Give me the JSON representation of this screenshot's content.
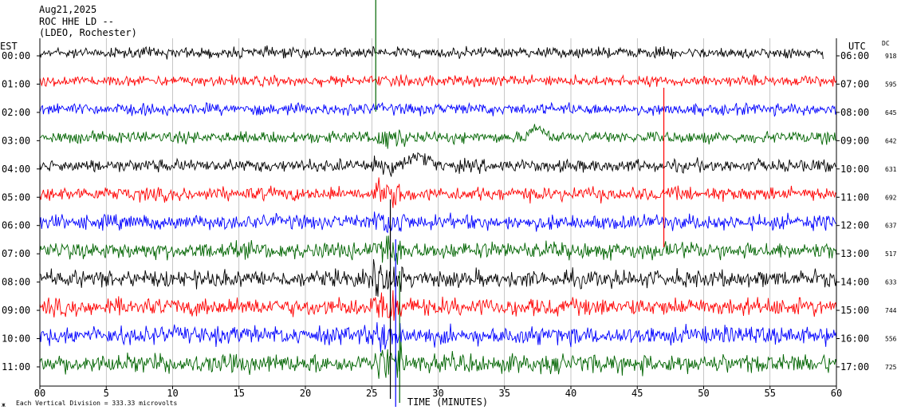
{
  "header": {
    "date": "Aug21,2025",
    "station": "ROC HHE LD --",
    "network": "(LDEO, Rochester)"
  },
  "chart_data": {
    "type": "line",
    "xlabel": "TIME (MINUTES)",
    "xlim": [
      0,
      60
    ],
    "x_ticks": [
      0,
      5,
      10,
      15,
      20,
      25,
      30,
      35,
      40,
      45,
      50,
      55,
      60
    ],
    "x_tick_labels": [
      "00",
      "5",
      "10",
      "15",
      "20",
      "25",
      "30",
      "35",
      "40",
      "45",
      "50",
      "55",
      "60"
    ],
    "left_axis_label": "EST",
    "right_axis_label": "UTC",
    "dc_label": "DC",
    "scale_note": "Each Vertical Division = 333.33 microvolts",
    "corner_mark": "ж",
    "grid": "vertical",
    "colors": [
      "#000000",
      "#ff0000",
      "#0000ff",
      "#006400"
    ],
    "rows": [
      {
        "est": "00:00",
        "utc": "06:00",
        "dc": "918",
        "color": "#000000",
        "amplitude": 1.0
      },
      {
        "est": "01:00",
        "utc": "07:00",
        "dc": "595",
        "color": "#ff0000",
        "amplitude": 1.0
      },
      {
        "est": "02:00",
        "utc": "08:00",
        "dc": "645",
        "color": "#0000ff",
        "amplitude": 1.1
      },
      {
        "est": "03:00",
        "utc": "09:00",
        "dc": "642",
        "color": "#006400",
        "amplitude": 1.1
      },
      {
        "est": "04:00",
        "utc": "10:00",
        "dc": "631",
        "color": "#000000",
        "amplitude": 1.2
      },
      {
        "est": "05:00",
        "utc": "11:00",
        "dc": "692",
        "color": "#ff0000",
        "amplitude": 1.3
      },
      {
        "est": "06:00",
        "utc": "12:00",
        "dc": "637",
        "color": "#0000ff",
        "amplitude": 1.4
      },
      {
        "est": "07:00",
        "utc": "13:00",
        "dc": "517",
        "color": "#006400",
        "amplitude": 1.6
      },
      {
        "est": "08:00",
        "utc": "14:00",
        "dc": "633",
        "color": "#000000",
        "amplitude": 1.6
      },
      {
        "est": "09:00",
        "utc": "15:00",
        "dc": "744",
        "color": "#ff0000",
        "amplitude": 1.7
      },
      {
        "est": "10:00",
        "utc": "16:00",
        "dc": "556",
        "color": "#0000ff",
        "amplitude": 1.7
      },
      {
        "est": "11:00",
        "utc": "17:00",
        "dc": "725",
        "color": "#006400",
        "amplitude": 1.8
      }
    ]
  }
}
